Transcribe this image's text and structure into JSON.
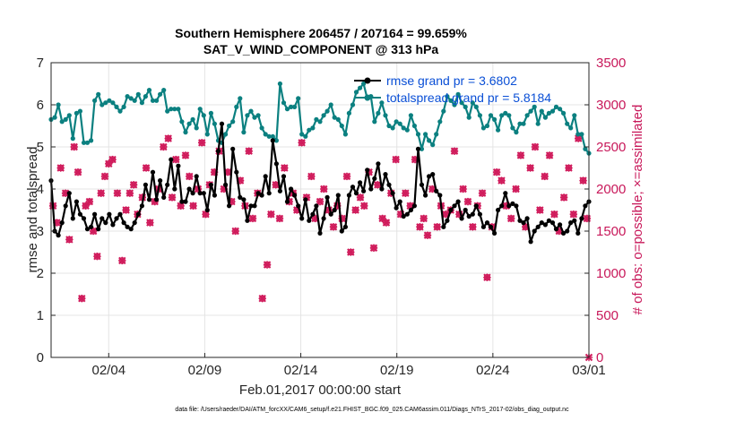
{
  "chart_data": {
    "type": "line",
    "title_line1": "Southern Hemisphere 206457 / 207164 = 99.659%",
    "title_line2": "SAT_V_WIND_COMPONENT @ 313 hPa",
    "ylabel_left": "rmse and totalspread",
    "ylabel_right": "# of obs: o=possible; ×=assimilated",
    "xlabel": "Feb.01,2017 00:00:00 start",
    "footer": "data file: /Users/raeder/DAI/ATM_forcXX/CAM6_setup/f.e21.FHIST_BGC.f09_025.CAM6assim.011/Diags_NTrS_2017-02/obs_diag_output.nc",
    "xlim": [
      1,
      29
    ],
    "ylim_left": [
      0,
      7
    ],
    "ylim_right": [
      0,
      3500
    ],
    "x_ticks": [
      4,
      9,
      14,
      19,
      24,
      29
    ],
    "x_tick_labels": [
      "02/04",
      "02/09",
      "02/14",
      "02/19",
      "02/24",
      "03/01"
    ],
    "y_ticks_left": [
      "0",
      "1",
      "2",
      "3",
      "4",
      "5",
      "6",
      "7"
    ],
    "y_ticks_right": [
      "0",
      "500",
      "1000",
      "1500",
      "2000",
      "2500",
      "3000",
      "3500"
    ],
    "colors": {
      "rmse": "#000000",
      "spread": "#0b8080",
      "obs": "#d01c5c",
      "legend_text": "#0a4fd6"
    },
    "series": [
      {
        "name": "rmse grand pr = 3.6802",
        "color": "#000000",
        "values": [
          4.2,
          3.0,
          2.9,
          3.2,
          3.6,
          3.9,
          3.3,
          3.7,
          3.4,
          3.3,
          3.05,
          3.1,
          3.4,
          3.05,
          3.3,
          3.2,
          3.4,
          3.15,
          3.3,
          3.4,
          3.2,
          3.1,
          3.05,
          3.2,
          3.4,
          3.6,
          4.1,
          3.75,
          4.4,
          3.75,
          4.2,
          3.8,
          4.1,
          4.7,
          4.0,
          4.55,
          3.7,
          3.7,
          4.0,
          3.9,
          4.3,
          3.9,
          3.9,
          3.5,
          4.1,
          3.85,
          4.9,
          5.55,
          4.1,
          3.6,
          4.95,
          4.4,
          3.8,
          3.75,
          3.25,
          3.6,
          3.6,
          3.9,
          3.85,
          4.3,
          3.9,
          5.15,
          4.6,
          3.95,
          4.3,
          3.7,
          4.0,
          3.85,
          3.6,
          3.3,
          3.75,
          3.25,
          3.4,
          3.6,
          2.95,
          3.3,
          3.8,
          3.4,
          3.5,
          3.85,
          3.0,
          3.1,
          3.85,
          4.05,
          3.9,
          4.15,
          3.95,
          4.45,
          4.0,
          4.25,
          4.6,
          4.0,
          4.35,
          4.1,
          3.9,
          3.55,
          3.7,
          3.35,
          3.4,
          3.5,
          3.6,
          4.95,
          4.1,
          3.85,
          4.3,
          4.35,
          3.95,
          3.85,
          3.1,
          3.25,
          3.5,
          3.6,
          3.7,
          3.3,
          3.5,
          3.35,
          3.4,
          3.6,
          3.4,
          3.1,
          3.2,
          3.1,
          2.95,
          3.5,
          3.6,
          3.9,
          3.6,
          3.65,
          3.6,
          3.25,
          3.2,
          3.3,
          2.75,
          3.0,
          3.1,
          3.2,
          3.15,
          3.25,
          3.2,
          3.05,
          3.15,
          2.95,
          3.0,
          3.2,
          3.25,
          2.95,
          3.3,
          3.6,
          3.7
        ]
      },
      {
        "name": "totalspread grand pr = 5.8184",
        "color": "#0b8080",
        "values": [
          5.65,
          5.7,
          6.0,
          5.6,
          5.65,
          5.75,
          5.2,
          5.8,
          5.85,
          5.1,
          5.1,
          5.15,
          6.1,
          6.25,
          6.0,
          6.05,
          6.1,
          6.05,
          5.95,
          5.85,
          5.95,
          6.2,
          6.15,
          6.1,
          6.25,
          6.05,
          6.2,
          6.35,
          6.1,
          6.1,
          6.25,
          6.35,
          5.85,
          5.9,
          5.9,
          5.9,
          5.6,
          5.35,
          5.55,
          5.65,
          5.45,
          5.9,
          5.75,
          5.3,
          5.8,
          5.55,
          5.15,
          5.1,
          5.3,
          5.5,
          5.6,
          5.95,
          6.15,
          5.35,
          5.75,
          5.85,
          5.7,
          5.75,
          5.45,
          5.3,
          5.25,
          5.25,
          5.15,
          6.5,
          6.05,
          5.9,
          5.95,
          5.95,
          6.15,
          5.3,
          5.25,
          5.4,
          5.45,
          5.65,
          5.6,
          5.75,
          5.85,
          6.0,
          5.7,
          5.65,
          5.5,
          5.3,
          5.8,
          6.0,
          6.3,
          6.4,
          6.5,
          6.15,
          6.2,
          5.6,
          5.8,
          6.05,
          5.75,
          5.5,
          5.45,
          5.6,
          5.55,
          5.45,
          5.4,
          5.75,
          5.5,
          5.3,
          4.95,
          5.3,
          5.15,
          5.05,
          5.3,
          5.6,
          5.85,
          6.2,
          6.1,
          6.0,
          6.25,
          6.05,
          5.95,
          5.7,
          6.05,
          5.95,
          5.75,
          5.45,
          5.5,
          5.75,
          5.65,
          5.4,
          5.75,
          5.8,
          5.75,
          5.45,
          5.35,
          5.55,
          5.55,
          5.75,
          5.85,
          5.95,
          5.55,
          5.85,
          5.7,
          5.8,
          5.85,
          5.95,
          5.9,
          5.8,
          5.55,
          5.45,
          5.75,
          5.3,
          5.3,
          4.95,
          4.85
        ]
      }
    ],
    "obs_possible": [
      [
        1.1,
        1800
      ],
      [
        1.3,
        1600
      ],
      [
        1.5,
        2250
      ],
      [
        1.75,
        1950
      ],
      [
        1.95,
        1400
      ],
      [
        2.2,
        2500
      ],
      [
        2.4,
        2200
      ],
      [
        2.6,
        700
      ],
      [
        2.8,
        1800
      ],
      [
        3.0,
        1850
      ],
      [
        3.2,
        1500
      ],
      [
        3.4,
        1200
      ],
      [
        3.6,
        1950
      ],
      [
        3.8,
        2150
      ],
      [
        4.0,
        2300
      ],
      [
        4.2,
        2350
      ],
      [
        4.45,
        1950
      ],
      [
        4.7,
        1150
      ],
      [
        4.9,
        1750
      ],
      [
        5.1,
        1950
      ],
      [
        5.3,
        2050
      ],
      [
        5.5,
        1700
      ],
      [
        5.75,
        1900
      ],
      [
        5.95,
        2250
      ],
      [
        6.15,
        1600
      ],
      [
        6.4,
        1850
      ],
      [
        6.6,
        2000
      ],
      [
        6.85,
        2500
      ],
      [
        7.1,
        2600
      ],
      [
        7.3,
        1900
      ],
      [
        7.5,
        2350
      ],
      [
        7.75,
        1800
      ],
      [
        8.0,
        2400
      ],
      [
        8.2,
        2150
      ],
      [
        8.4,
        1800
      ],
      [
        8.65,
        2000
      ],
      [
        8.85,
        2550
      ],
      [
        9.05,
        1700
      ],
      [
        9.25,
        2050
      ],
      [
        9.5,
        2200
      ],
      [
        9.75,
        2450
      ],
      [
        10.0,
        2000
      ],
      [
        10.2,
        2200
      ],
      [
        10.4,
        1850
      ],
      [
        10.6,
        1500
      ],
      [
        10.85,
        2100
      ],
      [
        11.1,
        1800
      ],
      [
        11.3,
        2450
      ],
      [
        11.5,
        1650
      ],
      [
        11.75,
        1950
      ],
      [
        12.0,
        700
      ],
      [
        12.25,
        1100
      ],
      [
        12.45,
        1700
      ],
      [
        12.7,
        2050
      ],
      [
        12.9,
        1650
      ],
      [
        13.15,
        2250
      ],
      [
        13.4,
        1850
      ],
      [
        13.6,
        1950
      ],
      [
        13.8,
        1750
      ],
      [
        14.05,
        2550
      ],
      [
        14.3,
        1900
      ],
      [
        14.55,
        2150
      ],
      [
        14.75,
        1650
      ],
      [
        15.0,
        1850
      ],
      [
        15.2,
        2000
      ],
      [
        15.45,
        1750
      ],
      [
        15.7,
        1550
      ],
      [
        15.9,
        1800
      ],
      [
        16.15,
        1650
      ],
      [
        16.4,
        2150
      ],
      [
        16.6,
        1250
      ],
      [
        16.85,
        1750
      ],
      [
        17.1,
        1900
      ],
      [
        17.3,
        1800
      ],
      [
        17.55,
        2200
      ],
      [
        17.8,
        1300
      ],
      [
        18.0,
        2050
      ],
      [
        18.25,
        1650
      ],
      [
        18.45,
        1600
      ],
      [
        18.7,
        1950
      ],
      [
        18.95,
        2350
      ],
      [
        19.2,
        1700
      ],
      [
        19.45,
        1950
      ],
      [
        19.7,
        1800
      ],
      [
        19.95,
        2350
      ],
      [
        20.2,
        1550
      ],
      [
        20.4,
        1650
      ],
      [
        20.6,
        1450
      ],
      [
        20.85,
        2000
      ],
      [
        21.1,
        1550
      ],
      [
        21.3,
        1800
      ],
      [
        21.55,
        1700
      ],
      [
        21.8,
        1750
      ],
      [
        22.0,
        2450
      ],
      [
        22.25,
        1700
      ],
      [
        22.45,
        2000
      ],
      [
        22.7,
        1850
      ],
      [
        22.95,
        1550
      ],
      [
        23.2,
        1800
      ],
      [
        23.45,
        1950
      ],
      [
        23.7,
        950
      ],
      [
        23.95,
        1550
      ],
      [
        24.2,
        2200
      ],
      [
        24.45,
        2100
      ],
      [
        24.7,
        1800
      ],
      [
        24.95,
        1650
      ],
      [
        25.2,
        2000
      ],
      [
        25.45,
        2400
      ],
      [
        25.7,
        1550
      ],
      [
        25.95,
        2250
      ],
      [
        26.2,
        2500
      ],
      [
        26.45,
        1750
      ],
      [
        26.7,
        2150
      ],
      [
        26.95,
        2400
      ],
      [
        27.2,
        1700
      ],
      [
        27.45,
        1500
      ],
      [
        27.7,
        1900
      ],
      [
        27.95,
        2250
      ],
      [
        28.2,
        1700
      ],
      [
        28.45,
        2600
      ],
      [
        28.7,
        2100
      ],
      [
        28.9,
        1650
      ]
    ],
    "obs_assimilated": [
      [
        1.1,
        1800
      ],
      [
        1.3,
        1600
      ],
      [
        1.5,
        2250
      ],
      [
        1.75,
        1950
      ],
      [
        1.95,
        1400
      ],
      [
        2.2,
        2500
      ],
      [
        2.4,
        2200
      ],
      [
        2.6,
        700
      ],
      [
        2.8,
        1800
      ],
      [
        3.0,
        1850
      ],
      [
        3.2,
        1500
      ],
      [
        3.4,
        1200
      ],
      [
        3.6,
        1950
      ],
      [
        3.8,
        2150
      ],
      [
        4.0,
        2300
      ],
      [
        4.2,
        2350
      ],
      [
        4.45,
        1950
      ],
      [
        4.7,
        1150
      ],
      [
        4.9,
        1750
      ],
      [
        5.1,
        1950
      ],
      [
        5.3,
        2050
      ],
      [
        5.5,
        1700
      ],
      [
        5.75,
        1900
      ],
      [
        5.95,
        2250
      ],
      [
        6.15,
        1600
      ],
      [
        6.4,
        1850
      ],
      [
        6.6,
        2000
      ],
      [
        6.85,
        2500
      ],
      [
        7.1,
        2600
      ],
      [
        7.3,
        1900
      ],
      [
        7.5,
        2350
      ],
      [
        7.75,
        1800
      ],
      [
        8.0,
        2400
      ],
      [
        8.2,
        2150
      ],
      [
        8.4,
        1800
      ],
      [
        8.65,
        2000
      ],
      [
        8.85,
        2550
      ],
      [
        9.05,
        1700
      ],
      [
        9.25,
        2050
      ],
      [
        9.5,
        2200
      ],
      [
        9.75,
        2450
      ],
      [
        10.0,
        2000
      ],
      [
        10.2,
        2200
      ],
      [
        10.4,
        1850
      ],
      [
        10.6,
        1500
      ],
      [
        10.85,
        2100
      ],
      [
        11.1,
        1800
      ],
      [
        11.3,
        2450
      ],
      [
        11.5,
        1650
      ],
      [
        11.75,
        1950
      ],
      [
        12.0,
        700
      ],
      [
        12.25,
        1100
      ],
      [
        12.45,
        1700
      ],
      [
        12.7,
        2050
      ],
      [
        12.9,
        1650
      ],
      [
        13.15,
        2250
      ],
      [
        13.4,
        1850
      ],
      [
        13.6,
        1950
      ],
      [
        13.8,
        1750
      ],
      [
        14.05,
        2550
      ],
      [
        14.3,
        1900
      ],
      [
        14.55,
        2150
      ],
      [
        14.75,
        1650
      ],
      [
        15.0,
        1850
      ],
      [
        15.2,
        2000
      ],
      [
        15.45,
        1750
      ],
      [
        15.7,
        1550
      ],
      [
        15.9,
        1800
      ],
      [
        16.15,
        1650
      ],
      [
        16.4,
        2150
      ],
      [
        16.6,
        1250
      ],
      [
        16.85,
        1750
      ],
      [
        17.1,
        1900
      ],
      [
        17.3,
        1800
      ],
      [
        17.55,
        2200
      ],
      [
        17.8,
        1300
      ],
      [
        18.0,
        2050
      ],
      [
        18.25,
        1650
      ],
      [
        18.45,
        1600
      ],
      [
        18.7,
        1950
      ],
      [
        18.95,
        2350
      ],
      [
        19.2,
        1700
      ],
      [
        19.45,
        1950
      ],
      [
        19.7,
        1800
      ],
      [
        19.95,
        2350
      ],
      [
        20.2,
        1550
      ],
      [
        20.4,
        1650
      ],
      [
        20.6,
        1450
      ],
      [
        20.85,
        2000
      ],
      [
        21.1,
        1550
      ],
      [
        21.3,
        1800
      ],
      [
        21.55,
        1700
      ],
      [
        21.8,
        1750
      ],
      [
        22.0,
        2450
      ],
      [
        22.25,
        1700
      ],
      [
        22.45,
        2000
      ],
      [
        22.7,
        1850
      ],
      [
        22.95,
        1550
      ],
      [
        23.2,
        1800
      ],
      [
        23.45,
        1950
      ],
      [
        23.7,
        950
      ],
      [
        23.95,
        1550
      ],
      [
        24.2,
        2200
      ],
      [
        24.45,
        2100
      ],
      [
        24.7,
        1800
      ],
      [
        24.95,
        1650
      ],
      [
        25.2,
        2000
      ],
      [
        25.45,
        2400
      ],
      [
        25.7,
        1550
      ],
      [
        25.95,
        2250
      ],
      [
        26.2,
        2500
      ],
      [
        26.45,
        1750
      ],
      [
        26.7,
        2150
      ],
      [
        26.95,
        2400
      ],
      [
        27.2,
        1700
      ],
      [
        27.45,
        1500
      ],
      [
        27.7,
        1900
      ],
      [
        27.95,
        2250
      ],
      [
        28.2,
        1700
      ],
      [
        28.45,
        2600
      ],
      [
        28.7,
        2100
      ],
      [
        28.9,
        1650
      ],
      [
        29.0,
        0
      ]
    ],
    "legend_position": "top-right",
    "grid": true
  }
}
